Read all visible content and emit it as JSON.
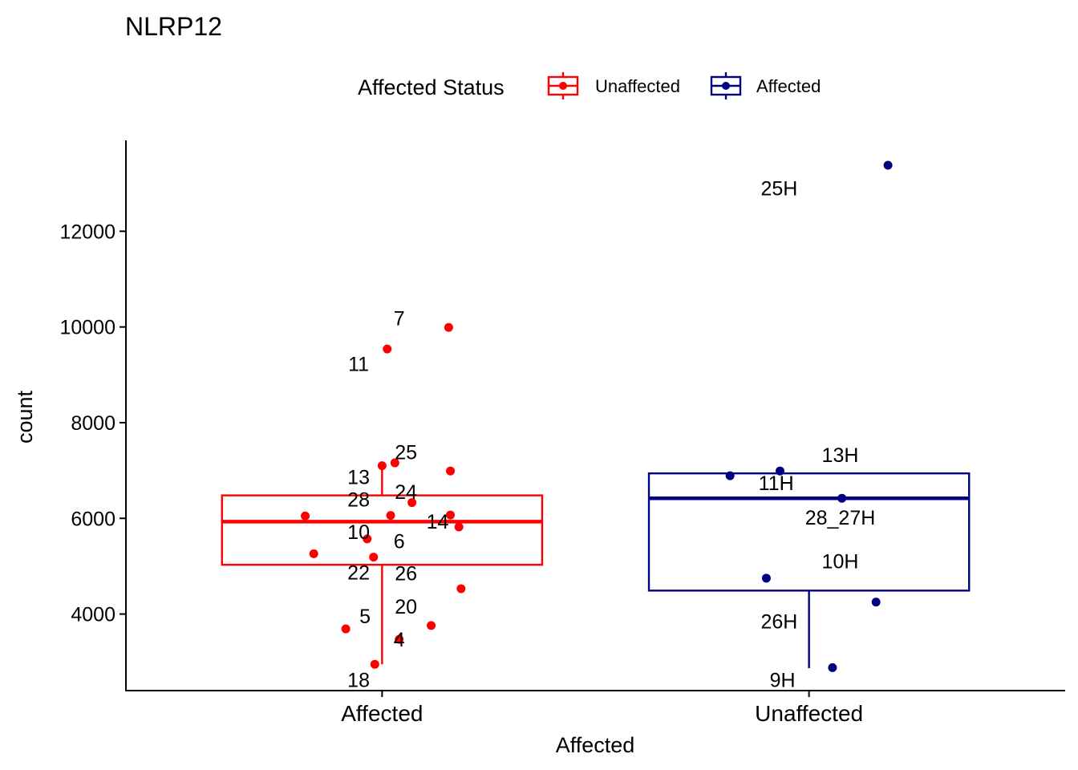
{
  "chart_data": {
    "type": "box",
    "title": "NLRP12",
    "xlabel": "Affected",
    "ylabel": "count",
    "categories": [
      "Affected",
      "Unaffected"
    ],
    "ylim": [
      2400,
      13900
    ],
    "yticks": [
      4000,
      6000,
      8000,
      10000,
      12000
    ],
    "grid": false,
    "legend": {
      "title": "Affected Status",
      "placement": "top",
      "entries": [
        {
          "name": "Unaffected",
          "color": "#FF0000"
        },
        {
          "name": "Affected",
          "color": "#000080"
        }
      ]
    },
    "boxes": [
      {
        "category": "Affected",
        "color": "#FF0000",
        "q1": 5030,
        "median": 5930,
        "q3": 6480,
        "whisker_low": 2950,
        "whisker_high": 7150
      },
      {
        "category": "Unaffected",
        "color": "#000080",
        "q1": 4490,
        "median": 6420,
        "q3": 6940,
        "whisker_low": 2870,
        "whisker_high": 6940
      }
    ],
    "points": [
      {
        "group": "Affected",
        "label": "7",
        "x": 0.156,
        "y": 9990,
        "lx": 0.04,
        "ly": 10190
      },
      {
        "group": "Affected",
        "label": "11",
        "x": 0.012,
        "y": 9540,
        "lx": -0.055,
        "ly": 9230
      },
      {
        "group": "Affected",
        "label": "25",
        "x": 0.03,
        "y": 7160,
        "lx": 0.056,
        "ly": 7390
      },
      {
        "group": "Affected",
        "label": "13",
        "x": 0.0,
        "y": 7100,
        "lx": -0.055,
        "ly": 6870
      },
      {
        "group": "Affected",
        "label": "24",
        "x": 0.07,
        "y": 6330,
        "lx": 0.056,
        "ly": 6560
      },
      {
        "group": "Affected",
        "label": "28",
        "x": 0.02,
        "y": 6060,
        "lx": -0.055,
        "ly": 6400
      },
      {
        "group": "Affected",
        "label": "14",
        "x": 0.16,
        "y": 6070,
        "lx": 0.13,
        "ly": 5940
      },
      {
        "group": "Affected",
        "label": "10",
        "x": -0.035,
        "y": 5570,
        "lx": -0.055,
        "ly": 5720
      },
      {
        "group": "Affected",
        "label": "6",
        "x": 0.18,
        "y": 5820,
        "lx": 0.04,
        "ly": 5530
      },
      {
        "group": "Affected",
        "label": "22",
        "x": -0.02,
        "y": 5190,
        "lx": -0.055,
        "ly": 4870
      },
      {
        "group": "Affected",
        "label": "26",
        "x": 0.185,
        "y": 4530,
        "lx": 0.056,
        "ly": 4860
      },
      {
        "group": "Affected",
        "label": "20",
        "x": 0.115,
        "y": 3760,
        "lx": 0.056,
        "ly": 4160
      },
      {
        "group": "Affected",
        "label": "5",
        "x": -0.085,
        "y": 3690,
        "lx": -0.04,
        "ly": 3960
      },
      {
        "group": "Affected",
        "label": "4",
        "x": 0.04,
        "y": 3470,
        "lx": 0.04,
        "ly": 3470
      },
      {
        "group": "Affected",
        "label": "18",
        "x": -0.017,
        "y": 2950,
        "lx": -0.055,
        "ly": 2630
      },
      {
        "group": "Affected",
        "label": "",
        "x": -0.18,
        "y": 6050,
        "lx": null,
        "ly": null
      },
      {
        "group": "Affected",
        "label": "",
        "x": -0.16,
        "y": 5260,
        "lx": null,
        "ly": null
      },
      {
        "group": "Affected",
        "label": "",
        "x": 0.16,
        "y": 6990,
        "lx": null,
        "ly": null
      },
      {
        "group": "Unaffected",
        "label": "25H",
        "x": 0.185,
        "y": 13380,
        "lx": -0.07,
        "ly": 12900
      },
      {
        "group": "Unaffected",
        "label": "13H",
        "x": -0.068,
        "y": 6990,
        "lx": 0.073,
        "ly": 7330
      },
      {
        "group": "Unaffected",
        "label": "11H",
        "x": -0.185,
        "y": 6890,
        "lx": -0.077,
        "ly": 6740
      },
      {
        "group": "Unaffected",
        "label": "28_27H",
        "x": 0.077,
        "y": 6420,
        "lx": 0.073,
        "ly": 6020
      },
      {
        "group": "Unaffected",
        "label": "10H",
        "x": -0.1,
        "y": 4750,
        "lx": 0.073,
        "ly": 5110
      },
      {
        "group": "Unaffected",
        "label": "26H",
        "x": 0.157,
        "y": 4250,
        "lx": -0.07,
        "ly": 3850
      },
      {
        "group": "Unaffected",
        "label": "9H",
        "x": 0.055,
        "y": 2880,
        "lx": -0.062,
        "ly": 2630
      }
    ]
  }
}
